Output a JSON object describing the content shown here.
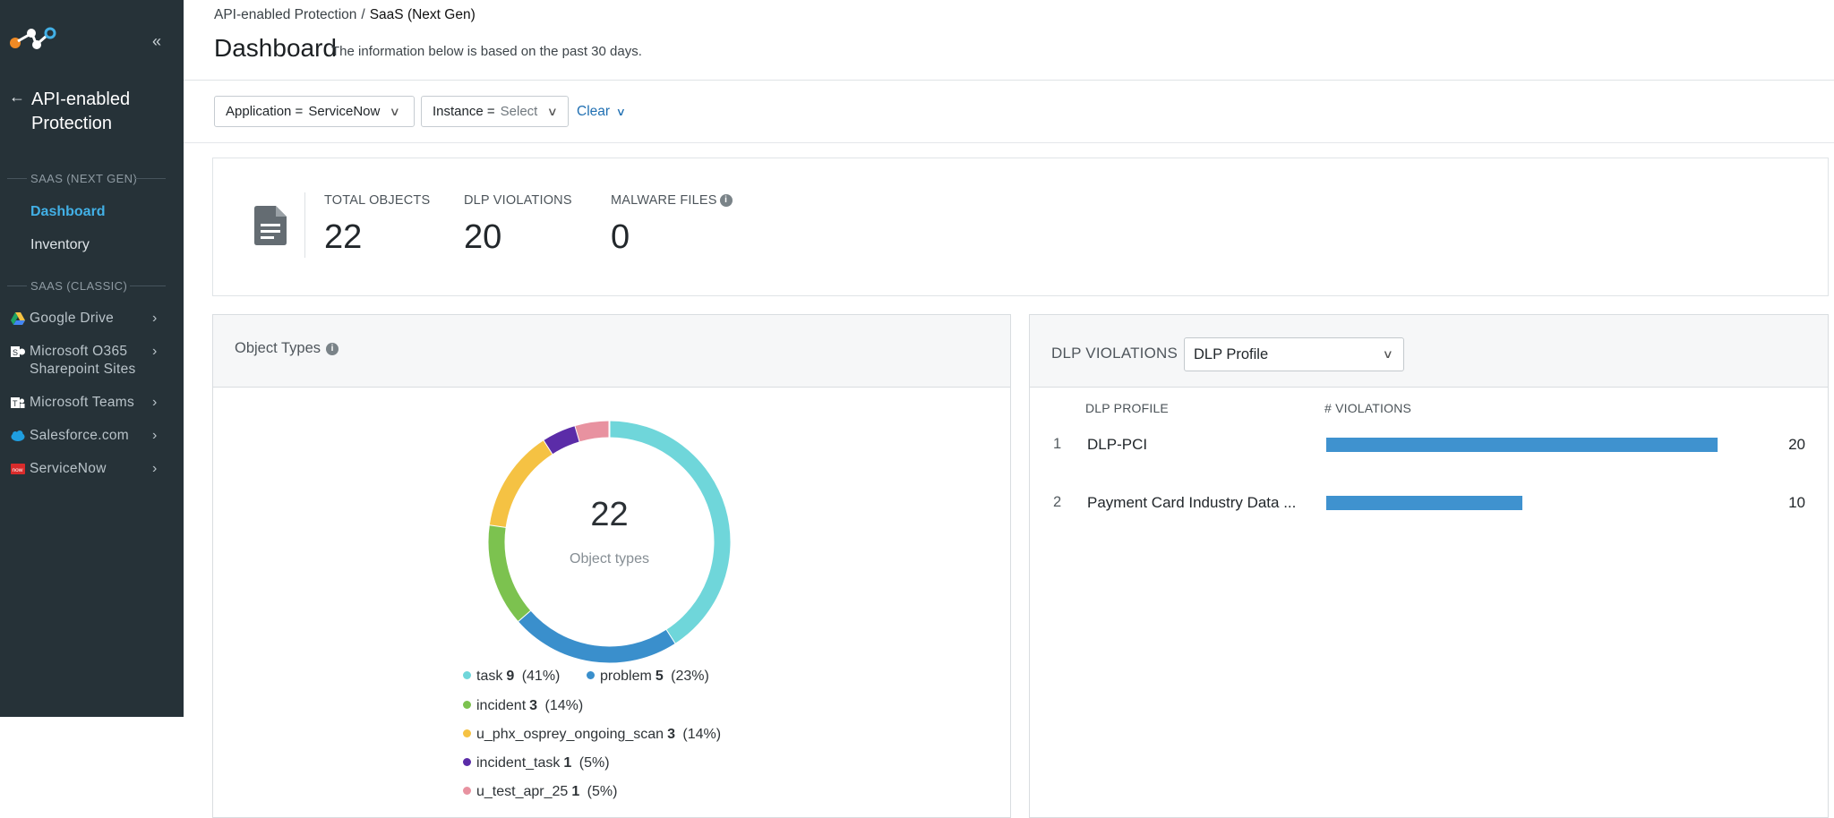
{
  "sidebar": {
    "title": "API-enabled Protection",
    "section_next_gen": "SAAS (NEXT GEN)",
    "links": [
      {
        "label": "Dashboard",
        "active": true
      },
      {
        "label": "Inventory",
        "active": false
      }
    ],
    "section_classic": "SAAS (CLASSIC)",
    "apps": [
      {
        "label": "Google Drive",
        "icon": "google-drive-icon"
      },
      {
        "label": "Microsoft O365 Sharepoint Sites",
        "icon": "sharepoint-icon"
      },
      {
        "label": "Microsoft Teams",
        "icon": "teams-icon"
      },
      {
        "label": "Salesforce.com",
        "icon": "salesforce-icon"
      },
      {
        "label": "ServiceNow",
        "icon": "servicenow-icon"
      }
    ]
  },
  "breadcrumb": {
    "parent": "API-enabled Protection",
    "separator": "/",
    "current": "SaaS (Next Gen)"
  },
  "page": {
    "title": "Dashboard",
    "subtitle": "The information below is based on the past 30 days."
  },
  "filters": {
    "application": {
      "label": "Application =",
      "value": "ServiceNow"
    },
    "instance": {
      "label": "Instance =",
      "value": "Select"
    },
    "clear": "Clear"
  },
  "stats": [
    {
      "label": "TOTAL OBJECTS",
      "value": "22"
    },
    {
      "label": "DLP VIOLATIONS",
      "value": "20"
    },
    {
      "label": "MALWARE FILES",
      "value": "0"
    }
  ],
  "object_types": {
    "title": "Object Types",
    "center_value": "22",
    "center_label": "Object types",
    "legend": [
      {
        "name": "task",
        "count": "9",
        "pct": "(41%)"
      },
      {
        "name": "problem",
        "count": "5",
        "pct": "(23%)"
      },
      {
        "name": "incident",
        "count": "3",
        "pct": "(14%)"
      },
      {
        "name": "u_phx_osprey_ongoing_scan",
        "count": "3",
        "pct": "(14%)"
      },
      {
        "name": "incident_task",
        "count": "1",
        "pct": "(5%)"
      },
      {
        "name": "u_test_apr_25",
        "count": "1",
        "pct": "(5%)"
      }
    ]
  },
  "chart_data": [
    {
      "type": "pie",
      "title": "Object Types",
      "categories": [
        "task",
        "problem",
        "incident",
        "u_phx_osprey_ongoing_scan",
        "incident_task",
        "u_test_apr_25"
      ],
      "values": [
        9,
        5,
        3,
        3,
        1,
        1
      ],
      "colors": [
        "#6fd6da",
        "#3a8fcc",
        "#7cc24f",
        "#f5c243",
        "#5b2ca8",
        "#e892a0"
      ],
      "donut": true
    },
    {
      "type": "bar",
      "orientation": "horizontal",
      "title": "DLP VIOLATIONS",
      "categories": [
        "DLP-PCI",
        "Payment Card Industry Data ..."
      ],
      "values": [
        20,
        10
      ],
      "xlabel": "# VIOLATIONS",
      "ylabel": "DLP PROFILE",
      "color": "#3f92cf"
    }
  ],
  "dlp": {
    "title": "DLP VIOLATIONS",
    "select_value": "DLP Profile",
    "col_profile": "DLP PROFILE",
    "col_violations": "# VIOLATIONS",
    "rows": [
      {
        "num": "1",
        "name": "DLP-PCI",
        "value": "20"
      },
      {
        "num": "2",
        "name": "Payment Card Industry Data ...",
        "value": "10"
      }
    ]
  }
}
